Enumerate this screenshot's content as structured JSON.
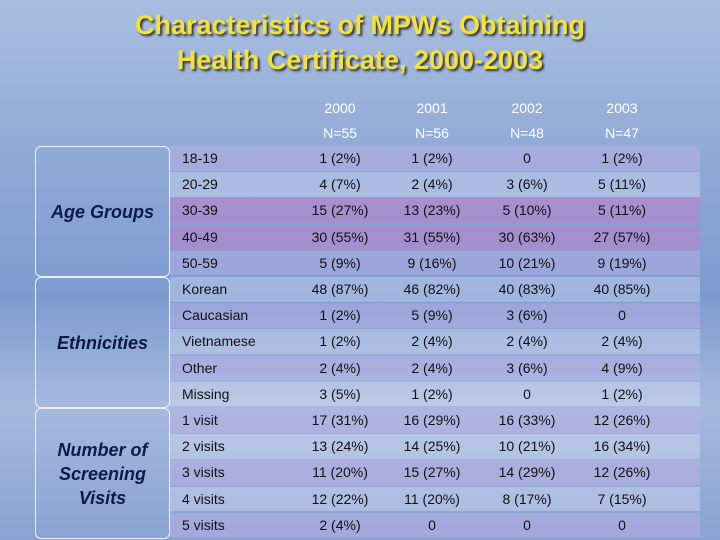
{
  "title": {
    "lines": [
      "Characteristics of MPWs Obtaining",
      "Health Certificate, 2000-2003"
    ]
  },
  "table": {
    "columns": [
      {
        "year": "2000",
        "n": "N=55"
      },
      {
        "year": "2001",
        "n": "N=56"
      },
      {
        "year": "2002",
        "n": "N=48"
      },
      {
        "year": "2003",
        "n": "N=47"
      }
    ],
    "groups": [
      {
        "label": "Age Groups",
        "rows": [
          {
            "label": "18-19",
            "cells": [
              "1 (2%)",
              "1 (2%)",
              "0",
              "1 (2%)"
            ]
          },
          {
            "label": "20-29",
            "cells": [
              "4 (7%)",
              "2 (4%)",
              "3 (6%)",
              "5 (11%)"
            ]
          },
          {
            "label": "30-39",
            "cells": [
              "15 (27%)",
              "13 (23%)",
              "5 (10%)",
              "5 (11%)"
            ]
          },
          {
            "label": "40-49",
            "cells": [
              "30 (55%)",
              "31 (55%)",
              "30 (63%)",
              "27 (57%)"
            ]
          },
          {
            "label": "50-59",
            "cells": [
              "5 (9%)",
              "9 (16%)",
              "10 (21%)",
              "9 (19%)"
            ]
          }
        ]
      },
      {
        "label": "Ethnicities",
        "rows": [
          {
            "label": "Korean",
            "cells": [
              "48 (87%)",
              "46 (82%)",
              "40 (83%)",
              "40 (85%)"
            ]
          },
          {
            "label": "Caucasian",
            "cells": [
              "1 (2%)",
              "5 (9%)",
              "3 (6%)",
              "0"
            ]
          },
          {
            "label": "Vietnamese",
            "cells": [
              "1 (2%)",
              "2 (4%)",
              "2 (4%)",
              "2 (4%)"
            ]
          },
          {
            "label": "Other",
            "cells": [
              "2 (4%)",
              "2 (4%)",
              "3 (6%)",
              "4 (9%)"
            ]
          },
          {
            "label": "Missing",
            "cells": [
              "3 (5%)",
              "1 (2%)",
              "0",
              "1 (2%)"
            ]
          }
        ]
      },
      {
        "label": "Number of Screening Visits",
        "rows": [
          {
            "label": "1 visit",
            "cells": [
              "17 (31%)",
              "16 (29%)",
              "16 (33%)",
              "12 (26%)"
            ]
          },
          {
            "label": "2 visits",
            "cells": [
              "13 (24%)",
              "14 (25%)",
              "10 (21%)",
              "16 (34%)"
            ]
          },
          {
            "label": "3 visits",
            "cells": [
              "11 (20%)",
              "15 (27%)",
              "14 (29%)",
              "12 (26%)"
            ]
          },
          {
            "label": "4 visits",
            "cells": [
              "12 (22%)",
              "11 (20%)",
              "8 (17%)",
              "7 (15%)"
            ]
          },
          {
            "label": "5 visits",
            "cells": [
              "2 (4%)",
              "0",
              "0",
              "0"
            ]
          }
        ]
      }
    ]
  }
}
